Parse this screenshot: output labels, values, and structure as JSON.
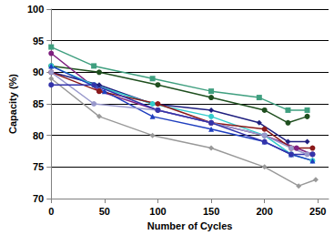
{
  "chart_data": {
    "type": "line",
    "x_label": "Number of Cycles",
    "y_label": "Capacity (%)",
    "xlim": [
      0,
      260
    ],
    "xticks": [
      0,
      50,
      100,
      150,
      200,
      250
    ],
    "ylim": [
      70,
      100
    ],
    "yticks": [
      70,
      75,
      80,
      85,
      90,
      95,
      100
    ],
    "grid": true,
    "series": [
      {
        "color": "#3f9f7f",
        "marker": "square",
        "line_style": "solid",
        "x": [
          0,
          40,
          95,
          150,
          195,
          222,
          240
        ],
        "values": [
          94,
          91,
          89,
          87,
          86,
          84,
          84
        ]
      },
      {
        "color": "#1f4f1f",
        "marker": "circle",
        "line_style": "solid",
        "x": [
          0,
          45,
          100,
          150,
          200,
          222,
          240
        ],
        "values": [
          91,
          90,
          88,
          86,
          84,
          82,
          83
        ]
      },
      {
        "color": "#999999",
        "marker": "diamond",
        "line_style": "solid",
        "x": [
          0,
          45,
          95,
          150,
          200,
          232,
          248
        ],
        "values": [
          89,
          83,
          80,
          78,
          75,
          72,
          73
        ]
      },
      {
        "color": "#1f1f7f",
        "marker": "diamond",
        "line_style": "solid",
        "x": [
          0,
          45,
          95,
          150,
          195,
          222,
          240
        ],
        "values": [
          90,
          88,
          85,
          84,
          82,
          79,
          79
        ]
      },
      {
        "color": "#7f1f7f",
        "marker": "circle",
        "line_style": "solid",
        "x": [
          0,
          45,
          100,
          150,
          200,
          230,
          245
        ],
        "values": [
          93,
          87,
          84,
          82,
          80,
          78,
          77
        ]
      },
      {
        "color": "#33cccc",
        "marker": "circle",
        "line_style": "solid",
        "x": [
          0,
          40,
          95,
          150,
          200,
          225,
          245
        ],
        "values": [
          91,
          88,
          85,
          83,
          80,
          77,
          76
        ]
      },
      {
        "color": "#1f3fbf",
        "marker": "triangle",
        "line_style": "solid",
        "x": [
          0,
          50,
          95,
          150,
          200,
          225,
          245
        ],
        "values": [
          91,
          87,
          83,
          81,
          79,
          77,
          76
        ]
      },
      {
        "color": "#8b1a1a",
        "marker": "circle",
        "line_style": "solid",
        "x": [
          0,
          45,
          100,
          150,
          200,
          225,
          245
        ],
        "values": [
          90,
          87,
          85,
          82,
          81,
          78,
          78
        ]
      },
      {
        "color": "#9999cc",
        "marker": "circle",
        "line_style": "solid",
        "x": [
          0,
          40,
          100,
          150,
          200,
          225,
          240
        ],
        "values": [
          90,
          85,
          84,
          82,
          80,
          78,
          77
        ]
      },
      {
        "color": "#3333aa",
        "marker": "circle",
        "line_style": "solid",
        "x": [
          0,
          40,
          100,
          150,
          200,
          225,
          245
        ],
        "values": [
          88,
          88,
          84,
          82,
          79,
          77,
          77
        ]
      }
    ]
  }
}
